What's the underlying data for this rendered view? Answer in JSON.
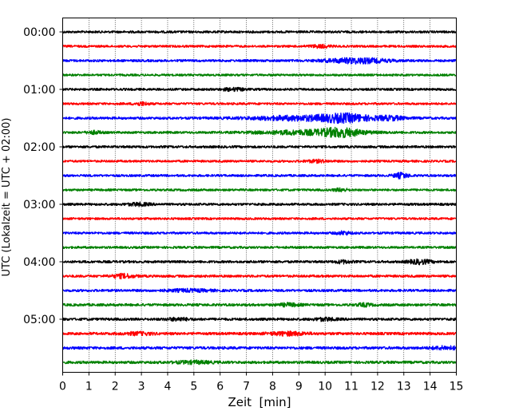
{
  "chart_data": {
    "type": "line",
    "xlabel": "Zeit  [min]",
    "ylabel": "UTC (Lokalzeit = UTC + 02:00)",
    "xlim": [
      0,
      15
    ],
    "x_ticks": [
      0,
      1,
      2,
      3,
      4,
      5,
      6,
      7,
      8,
      9,
      10,
      11,
      12,
      13,
      14,
      15
    ],
    "y_ticks": [
      "00:00",
      "01:00",
      "02:00",
      "03:00",
      "04:00",
      "05:00"
    ],
    "trace_interval_min": 15,
    "color_cycle": [
      "#000000",
      "#ff0000",
      "#0000ff",
      "#008000"
    ],
    "traces": [
      {
        "start": "00:00",
        "color": "#000000",
        "noise": 0.5,
        "bursts": []
      },
      {
        "start": "00:15",
        "color": "#ff0000",
        "noise": 0.45,
        "bursts": [
          {
            "t": 9.8,
            "w": 0.3,
            "a": 1.5
          }
        ]
      },
      {
        "start": "00:30",
        "color": "#0000ff",
        "noise": 0.55,
        "bursts": [
          {
            "t": 11.2,
            "w": 0.8,
            "a": 3.0
          }
        ]
      },
      {
        "start": "00:45",
        "color": "#008000",
        "noise": 0.4,
        "bursts": []
      },
      {
        "start": "01:00",
        "color": "#000000",
        "noise": 0.5,
        "bursts": [
          {
            "t": 6.5,
            "w": 0.3,
            "a": 1.5
          }
        ]
      },
      {
        "start": "01:15",
        "color": "#ff0000",
        "noise": 0.45,
        "bursts": [
          {
            "t": 3.0,
            "w": 0.2,
            "a": 1.8
          }
        ]
      },
      {
        "start": "01:30",
        "color": "#0000ff",
        "noise": 0.6,
        "bursts": [
          {
            "t": 9.0,
            "w": 1.3,
            "a": 2.5
          },
          {
            "t": 10.8,
            "w": 0.7,
            "a": 4.2
          },
          {
            "t": 12.5,
            "w": 0.4,
            "a": 2.2
          }
        ]
      },
      {
        "start": "01:45",
        "color": "#008000",
        "noise": 0.5,
        "bursts": [
          {
            "t": 9.5,
            "w": 1.4,
            "a": 2.5
          },
          {
            "t": 10.6,
            "w": 0.5,
            "a": 3.8
          },
          {
            "t": 1.2,
            "w": 0.2,
            "a": 1.6
          }
        ]
      },
      {
        "start": "02:00",
        "color": "#000000",
        "noise": 0.55,
        "bursts": []
      },
      {
        "start": "02:15",
        "color": "#ff0000",
        "noise": 0.45,
        "bursts": [
          {
            "t": 9.7,
            "w": 0.3,
            "a": 1.4
          }
        ]
      },
      {
        "start": "02:30",
        "color": "#0000ff",
        "noise": 0.5,
        "bursts": [
          {
            "t": 12.9,
            "w": 0.2,
            "a": 3.0
          }
        ]
      },
      {
        "start": "02:45",
        "color": "#008000",
        "noise": 0.45,
        "bursts": [
          {
            "t": 10.6,
            "w": 0.2,
            "a": 1.6
          }
        ]
      },
      {
        "start": "03:00",
        "color": "#000000",
        "noise": 0.55,
        "bursts": [
          {
            "t": 2.9,
            "w": 0.3,
            "a": 1.6
          }
        ]
      },
      {
        "start": "03:15",
        "color": "#ff0000",
        "noise": 0.45,
        "bursts": []
      },
      {
        "start": "03:30",
        "color": "#0000ff",
        "noise": 0.5,
        "bursts": [
          {
            "t": 10.7,
            "w": 0.2,
            "a": 1.8
          }
        ]
      },
      {
        "start": "03:45",
        "color": "#008000",
        "noise": 0.5,
        "bursts": []
      },
      {
        "start": "04:00",
        "color": "#000000",
        "noise": 0.6,
        "bursts": [
          {
            "t": 13.6,
            "w": 0.3,
            "a": 2.4
          },
          {
            "t": 10.7,
            "w": 0.2,
            "a": 1.6
          }
        ]
      },
      {
        "start": "04:15",
        "color": "#ff0000",
        "noise": 0.6,
        "bursts": [
          {
            "t": 2.3,
            "w": 0.3,
            "a": 2.2
          }
        ]
      },
      {
        "start": "04:30",
        "color": "#0000ff",
        "noise": 0.6,
        "bursts": [
          {
            "t": 4.8,
            "w": 0.6,
            "a": 1.3
          }
        ]
      },
      {
        "start": "04:45",
        "color": "#008000",
        "noise": 0.65,
        "bursts": [
          {
            "t": 8.6,
            "w": 0.3,
            "a": 1.6
          },
          {
            "t": 11.5,
            "w": 0.2,
            "a": 1.6
          }
        ]
      },
      {
        "start": "05:00",
        "color": "#000000",
        "noise": 0.65,
        "bursts": [
          {
            "t": 4.4,
            "w": 0.3,
            "a": 1.5
          },
          {
            "t": 10.0,
            "w": 0.3,
            "a": 1.5
          }
        ]
      },
      {
        "start": "05:15",
        "color": "#ff0000",
        "noise": 0.7,
        "bursts": [
          {
            "t": 2.9,
            "w": 0.4,
            "a": 1.4
          },
          {
            "t": 8.6,
            "w": 0.5,
            "a": 1.9
          }
        ]
      },
      {
        "start": "05:30",
        "color": "#0000ff",
        "noise": 0.75,
        "bursts": [
          {
            "t": 14.6,
            "w": 0.4,
            "a": 1.6
          }
        ]
      },
      {
        "start": "05:45",
        "color": "#008000",
        "noise": 0.7,
        "bursts": [
          {
            "t": 5.0,
            "w": 0.5,
            "a": 1.4
          }
        ]
      }
    ]
  }
}
